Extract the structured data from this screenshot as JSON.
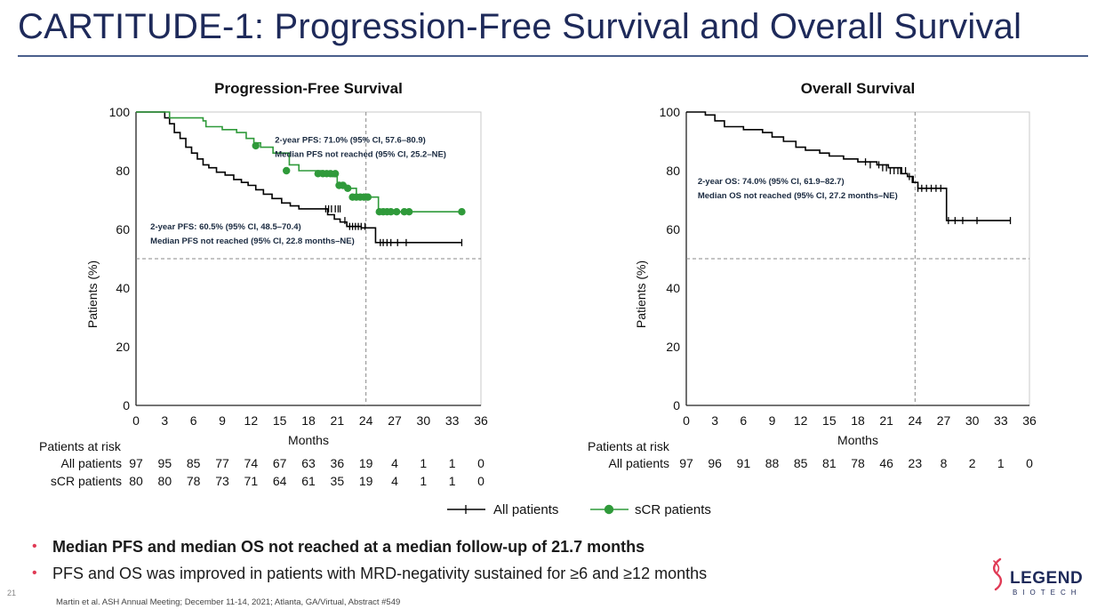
{
  "slide": {
    "title": "CARTITUDE-1: Progression-Free Survival and Overall Survival",
    "number": "21",
    "footnote": "Martin et al. ASH Annual Meeting; December 11-14, 2021; Atlanta, GA/Virtual, Abstract #549"
  },
  "bullets": [
    {
      "text": "Median PFS and median OS not reached at a median follow-up of 21.7 months",
      "bold": true
    },
    {
      "text": "PFS and OS was improved in patients with MRD-negativity sustained for ≥6 and ≥12 months",
      "bold": false
    }
  ],
  "logo": {
    "word": "LEGEND",
    "sub": "BIOTECH"
  },
  "colors": {
    "all_patients": "#000000",
    "scr_patients": "#2f9a3a",
    "title": "#1e2a5a",
    "bullet": "#e03a55"
  },
  "legend": [
    "All patients",
    "sCR patients"
  ],
  "chart_data": [
    {
      "type": "line",
      "title": "Progression-Free Survival",
      "xlabel": "Months",
      "ylabel": "Patients (%)",
      "xlim": [
        0,
        36
      ],
      "ylim": [
        0,
        100
      ],
      "xticks": [
        "0",
        "3",
        "6",
        "9",
        "12",
        "15",
        "18",
        "21",
        "24",
        "27",
        "30",
        "33",
        "36"
      ],
      "yticks": [
        "0",
        "20",
        "40",
        "60",
        "80",
        "100"
      ],
      "reference_lines": {
        "y": 50,
        "x": 24
      },
      "legend_position": "below",
      "annotations": [
        {
          "lines": [
            "2-year PFS: 71.0% (95% CI, 57.6–80.9)",
            "Median PFS not reached (95% CI, 25.2–NE)"
          ],
          "x": 14.5,
          "y": 89.5
        },
        {
          "lines": [
            "2-year PFS: 60.5% (95% CI, 48.5–70.4)",
            "Median PFS not reached (95% CI, 22.8 months–NE)"
          ],
          "x": 1.5,
          "y": 60
        }
      ],
      "risk_table": {
        "header": "Patients at risk",
        "rows": [
          {
            "label": "All patients",
            "values": [
              "97",
              "95",
              "85",
              "77",
              "74",
              "67",
              "63",
              "36",
              "19",
              "4",
              "1",
              "1",
              "0"
            ]
          },
          {
            "label": "sCR patients",
            "values": [
              "80",
              "80",
              "78",
              "73",
              "71",
              "64",
              "61",
              "35",
              "19",
              "4",
              "1",
              "1",
              "0"
            ]
          }
        ]
      },
      "series": [
        {
          "name": "All patients",
          "color": "#000000",
          "marker": "tick",
          "steps": [
            [
              0,
              100
            ],
            [
              2.5,
              100
            ],
            [
              3,
              98
            ],
            [
              3.5,
              96
            ],
            [
              4,
              93
            ],
            [
              4.6,
              91
            ],
            [
              5.2,
              88
            ],
            [
              5.8,
              86
            ],
            [
              6.4,
              84
            ],
            [
              7,
              82
            ],
            [
              7.6,
              81
            ],
            [
              8.4,
              79.5
            ],
            [
              9.3,
              78.5
            ],
            [
              10.2,
              77
            ],
            [
              11,
              76
            ],
            [
              11.7,
              75
            ],
            [
              12.5,
              73.5
            ],
            [
              13.3,
              72
            ],
            [
              14.2,
              70.5
            ],
            [
              15.2,
              69
            ],
            [
              16.1,
              68
            ],
            [
              17,
              67
            ],
            [
              19.5,
              67
            ],
            [
              20,
              65
            ],
            [
              20.7,
              63.5
            ],
            [
              21.3,
              62.5
            ],
            [
              22,
              61
            ],
            [
              23.5,
              60.5
            ],
            [
              24.5,
              60.5
            ],
            [
              25,
              55.5
            ],
            [
              34,
              55.5
            ]
          ],
          "censor": [
            [
              19.8,
              67
            ],
            [
              20.1,
              67
            ],
            [
              20.4,
              67
            ],
            [
              20.8,
              67
            ],
            [
              21.1,
              67
            ],
            [
              21.3,
              67
            ],
            [
              21.8,
              63
            ],
            [
              22.3,
              61
            ],
            [
              22.6,
              61
            ],
            [
              22.9,
              61
            ],
            [
              23.2,
              61
            ],
            [
              23.5,
              61
            ],
            [
              23.9,
              61
            ],
            [
              25.5,
              55.5
            ],
            [
              25.8,
              55.5
            ],
            [
              26.2,
              55.5
            ],
            [
              26.6,
              55.5
            ],
            [
              27.3,
              55.5
            ],
            [
              28.2,
              55.5
            ],
            [
              34,
              55.5
            ]
          ]
        },
        {
          "name": "sCR patients",
          "color": "#2f9a3a",
          "marker": "dot",
          "steps": [
            [
              0,
              100
            ],
            [
              3,
              100
            ],
            [
              3.5,
              98
            ],
            [
              7,
              97
            ],
            [
              7.3,
              95
            ],
            [
              9,
              94
            ],
            [
              10.5,
              93
            ],
            [
              11.5,
              91
            ],
            [
              12.3,
              89.5
            ],
            [
              13,
              88
            ],
            [
              14.3,
              86
            ],
            [
              16,
              82
            ],
            [
              17,
              80
            ],
            [
              19.5,
              79
            ],
            [
              20.5,
              78
            ],
            [
              21,
              75
            ],
            [
              22,
              74
            ],
            [
              23,
              71
            ],
            [
              25,
              71
            ],
            [
              25.3,
              66
            ],
            [
              34,
              66
            ]
          ],
          "censor": [
            [
              12.5,
              88.5
            ],
            [
              15.7,
              80
            ],
            [
              19,
              79
            ],
            [
              19.5,
              79
            ],
            [
              19.9,
              79
            ],
            [
              20.3,
              79
            ],
            [
              20.8,
              79
            ],
            [
              21.2,
              75
            ],
            [
              21.6,
              75
            ],
            [
              22.1,
              74
            ],
            [
              22.6,
              71
            ],
            [
              23,
              71
            ],
            [
              23.4,
              71
            ],
            [
              23.8,
              71
            ],
            [
              24.2,
              71
            ],
            [
              25.4,
              66
            ],
            [
              25.8,
              66
            ],
            [
              26.2,
              66
            ],
            [
              26.6,
              66
            ],
            [
              27.2,
              66
            ],
            [
              28,
              66
            ],
            [
              28.5,
              66
            ],
            [
              34,
              66
            ]
          ]
        }
      ]
    },
    {
      "type": "line",
      "title": "Overall Survival",
      "xlabel": "Months",
      "ylabel": "Patients (%)",
      "xlim": [
        0,
        36
      ],
      "ylim": [
        0,
        100
      ],
      "xticks": [
        "0",
        "3",
        "6",
        "9",
        "12",
        "15",
        "18",
        "21",
        "24",
        "27",
        "30",
        "33",
        "36"
      ],
      "yticks": [
        "0",
        "20",
        "40",
        "60",
        "80",
        "100"
      ],
      "reference_lines": {
        "y": 50,
        "x": 24
      },
      "legend_position": "below",
      "annotations": [
        {
          "lines": [
            "2-year OS: 74.0% (95% CI, 61.9–82.7)",
            "Median OS not reached (95% CI, 27.2 months–NE)"
          ],
          "x": 1.2,
          "y": 75.5
        }
      ],
      "risk_table": {
        "header": "Patients at risk",
        "rows": [
          {
            "label": "All patients",
            "values": [
              "97",
              "96",
              "91",
              "88",
              "85",
              "81",
              "78",
              "46",
              "23",
              "8",
              "2",
              "1",
              "0"
            ]
          }
        ]
      },
      "series": [
        {
          "name": "All patients",
          "color": "#000000",
          "marker": "tick",
          "steps": [
            [
              0,
              100
            ],
            [
              1.5,
              100
            ],
            [
              2,
              99
            ],
            [
              3,
              97
            ],
            [
              4,
              95
            ],
            [
              6,
              94
            ],
            [
              8,
              93
            ],
            [
              9,
              91.5
            ],
            [
              10.2,
              90
            ],
            [
              11.5,
              88
            ],
            [
              12.5,
              87
            ],
            [
              14,
              86
            ],
            [
              15,
              85
            ],
            [
              16.5,
              84
            ],
            [
              18,
              83
            ],
            [
              20,
              82
            ],
            [
              21.2,
              81
            ],
            [
              22.5,
              79
            ],
            [
              23.2,
              78
            ],
            [
              23.8,
              76
            ],
            [
              24.3,
              74
            ],
            [
              27.2,
              74
            ],
            [
              27.3,
              63
            ],
            [
              34,
              63
            ]
          ],
          "censor": [
            [
              18.8,
              83
            ],
            [
              19.3,
              82
            ],
            [
              20.2,
              82
            ],
            [
              20.6,
              81
            ],
            [
              21,
              81
            ],
            [
              21.4,
              80
            ],
            [
              21.8,
              80
            ],
            [
              22.2,
              80
            ],
            [
              22.6,
              80
            ],
            [
              23,
              80
            ],
            [
              23.4,
              78
            ],
            [
              23.7,
              77
            ],
            [
              24.3,
              74
            ],
            [
              24.7,
              74
            ],
            [
              25.2,
              74
            ],
            [
              25.7,
              74
            ],
            [
              26.2,
              74
            ],
            [
              26.7,
              74
            ],
            [
              27.5,
              63
            ],
            [
              28.2,
              63
            ],
            [
              29,
              63
            ],
            [
              30.5,
              63
            ],
            [
              34,
              63
            ]
          ]
        }
      ]
    }
  ]
}
